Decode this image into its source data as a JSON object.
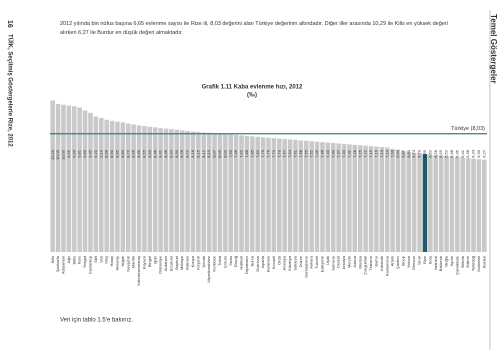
{
  "page": {
    "number": "16",
    "source": "TÜİK, Seçilmiş Göstergelerle Rize, 2012",
    "section": "Temel Göstergeler",
    "intro": "2012 yılında bin nüfus başına 6,65 evlenme sayısı ile Rize ili, 8,03 değerini alan Türkiye değerinin altındadır. Diğer iller arasında 10,29 ile Kilis en yüksek değeri alırken 6,27 ile Burdur en düşük değeri almaktadır.",
    "note": "Veri için tablo 1.5'e bakınız."
  },
  "chart_data": {
    "type": "bar",
    "title": "Grafik 1.11 Kaba evlenme hızı, 2012",
    "subtitle": "(‰)",
    "categories": [
      "Kilis",
      "Şanlıurfa",
      "Adıyaman",
      "Ağrı",
      "Bitlis",
      "Kars",
      "Yozgat",
      "Gaziantep",
      "Siirt",
      "Van",
      "Muş",
      "Hatay",
      "Aksaray",
      "Niğde",
      "Nevşehir",
      "Mardin",
      "Kahramanmaraş",
      "Kayseri",
      "Bingöl",
      "Iğdır",
      "Osmaniye",
      "Ardahan",
      "Erzurum",
      "Bayburt",
      "Malatya",
      "Batman",
      "Konya",
      "Kırşehir",
      "Şırnak",
      "Afyonkarahisar",
      "Kırıkkale",
      "Tokat",
      "Çorum",
      "Sivas",
      "Elazığ",
      "Hakkari",
      "Diyarbakır",
      "Bursa",
      "Erzincan",
      "Isparta",
      "Karaman",
      "Kocaeli",
      "Ordu",
      "Amasya",
      "Kütahya",
      "Sakarya",
      "Düzce",
      "Gümüşhane",
      "Ankara",
      "Tunceli",
      "Eskişehir",
      "Uşak",
      "Samsun",
      "Denizli",
      "Antalya",
      "Mersin",
      "Adana",
      "Manisa",
      "Zonguldak",
      "Trabzon",
      "Bartın",
      "Karabük",
      "Kastamonu",
      "Artvin",
      "Çankırı",
      "Sinop",
      "Yalova",
      "Giresun",
      "İzmir",
      "Rize",
      "Bolu",
      "İstanbul",
      "Balıkesir",
      "Muğla",
      "Aydın",
      "Çanakkale",
      "Bilecik",
      "Edirne",
      "Tekirdağ",
      "Kırklareli",
      "Burdur"
    ],
    "values": [
      10.29,
      10.05,
      10.0,
      9.95,
      9.9,
      9.81,
      9.6,
      9.45,
      9.2,
      9.1,
      8.98,
      8.9,
      8.85,
      8.8,
      8.72,
      8.66,
      8.6,
      8.55,
      8.5,
      8.46,
      8.41,
      8.38,
      8.34,
      8.3,
      8.26,
      8.22,
      8.18,
      8.15,
      8.12,
      8.1,
      8.07,
      8.05,
      8.02,
      7.99,
      7.96,
      7.92,
      7.88,
      7.85,
      7.82,
      7.79,
      7.76,
      7.73,
      7.7,
      7.67,
      7.64,
      7.61,
      7.58,
      7.55,
      7.52,
      7.49,
      7.46,
      7.43,
      7.4,
      7.37,
      7.34,
      7.31,
      7.28,
      7.25,
      7.22,
      7.19,
      7.16,
      7.13,
      7.1,
      7.0,
      6.94,
      6.87,
      6.8,
      6.74,
      6.7,
      6.65,
      6.62,
      6.58,
      6.55,
      6.52,
      6.48,
      6.45,
      6.41,
      6.38,
      6.34,
      6.3,
      6.27
    ],
    "value_labels": [
      "10,29",
      "10,05",
      "10,00",
      "9,95",
      "9,90",
      "9,81",
      "9,60",
      "9,45",
      "9,20",
      "9,10",
      "8,98",
      "8,90",
      "8,85",
      "8,80",
      "8,72",
      "8,66",
      "8,60",
      "8,55",
      "8,50",
      "8,46",
      "8,41",
      "8,38",
      "8,34",
      "8,30",
      "8,26",
      "8,22",
      "8,18",
      "8,15",
      "8,12",
      "8,10",
      "8,07",
      "8,05",
      "8,02",
      "7,99",
      "7,96",
      "7,92",
      "7,88",
      "7,85",
      "7,82",
      "7,79",
      "7,76",
      "7,73",
      "7,70",
      "7,67",
      "7,64",
      "7,61",
      "7,58",
      "7,55",
      "7,52",
      "7,49",
      "7,46",
      "7,43",
      "7,40",
      "7,37",
      "7,34",
      "7,31",
      "7,28",
      "7,25",
      "7,22",
      "7,19",
      "7,16",
      "7,13",
      "7,10",
      "7,00",
      "6,94",
      "6,87",
      "6,80",
      "6,74",
      "6,70",
      "6,65",
      "6,62",
      "6,58",
      "6,55",
      "6,52",
      "6,48",
      "6,45",
      "6,41",
      "6,38",
      "6,34",
      "6,30",
      "6,27"
    ],
    "color": "#c9c9c9",
    "highlight_index": 69,
    "highlight_color": "#1d5c6b",
    "reference": {
      "label": "Türkiye (8,03)",
      "value": 8.03,
      "color": "#2b8193"
    },
    "ylim": [
      0,
      11
    ]
  }
}
